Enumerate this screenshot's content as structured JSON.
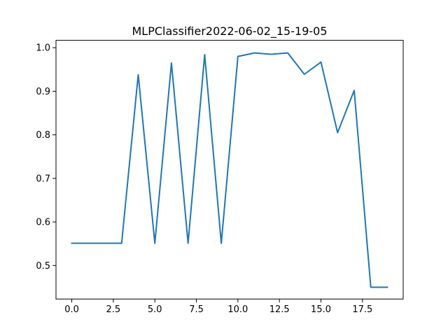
{
  "chart_data": {
    "type": "line",
    "title": "MLPClassifier2022-06-02_15-19-05",
    "xlabel": "",
    "ylabel": "",
    "xlim": [
      -0.95,
      19.95
    ],
    "ylim": [
      0.423,
      1.017
    ],
    "xticks": [
      0,
      2.5,
      5,
      7.5,
      10,
      12.5,
      15,
      17.5
    ],
    "xtick_labels": [
      "0.0",
      "2.5",
      "5.0",
      "7.5",
      "10.0",
      "12.5",
      "15.0",
      "17.5"
    ],
    "yticks": [
      0.5,
      0.6,
      0.7,
      0.8,
      0.9,
      1.0
    ],
    "ytick_labels": [
      "0.5",
      "0.6",
      "0.7",
      "0.8",
      "0.9",
      "1.0"
    ],
    "grid": false,
    "series": [
      {
        "color": "#1f77b4",
        "x": [
          0,
          1,
          2,
          3,
          4,
          5,
          6,
          7,
          8,
          9,
          10,
          11,
          12,
          13,
          14,
          15,
          16,
          17,
          18,
          19
        ],
        "y": [
          0.551,
          0.551,
          0.551,
          0.551,
          0.938,
          0.551,
          0.965,
          0.551,
          0.984,
          0.551,
          0.98,
          0.988,
          0.985,
          0.988,
          0.939,
          0.967,
          0.805,
          0.902,
          0.45,
          0.45
        ]
      }
    ]
  }
}
